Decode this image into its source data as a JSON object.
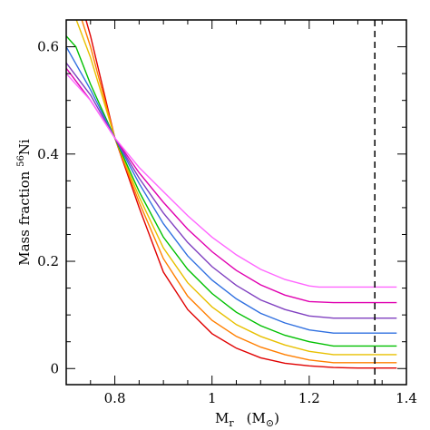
{
  "chart_data": {
    "type": "line",
    "xlabel": {
      "main": "M",
      "sub": "r",
      "unit_open": "(M",
      "unit_sym": "⊙",
      "unit_close": ")"
    },
    "ylabel": {
      "main": "Mass fraction ",
      "sup": "56",
      "tail": "Ni"
    },
    "xlim": [
      0.7,
      1.4
    ],
    "ylim": [
      -0.03,
      0.65
    ],
    "x_ticks": [
      "0.8",
      "1",
      "1.2",
      "1.4"
    ],
    "y_ticks": [
      "0",
      "0.2",
      "0.4",
      "0.6"
    ],
    "x_tick_values": [
      0.8,
      1.0,
      1.2,
      1.4
    ],
    "y_tick_values": [
      0,
      0.2,
      0.4,
      0.6
    ],
    "vline": {
      "x": 1.335,
      "style": "dashed",
      "color": "#000000"
    },
    "series": [
      {
        "color": "#e00000",
        "points": [
          [
            0.7,
            0.78
          ],
          [
            0.75,
            0.62
          ],
          [
            0.8,
            0.43
          ],
          [
            0.85,
            0.3
          ],
          [
            0.9,
            0.18
          ],
          [
            0.95,
            0.11
          ],
          [
            1.0,
            0.065
          ],
          [
            1.05,
            0.038
          ],
          [
            1.1,
            0.02
          ],
          [
            1.15,
            0.01
          ],
          [
            1.2,
            0.005
          ],
          [
            1.25,
            0.002
          ],
          [
            1.3,
            0.001
          ],
          [
            1.38,
            0.001
          ]
        ]
      },
      {
        "color": "#ff7f00",
        "points": [
          [
            0.7,
            0.74
          ],
          [
            0.75,
            0.6
          ],
          [
            0.8,
            0.43
          ],
          [
            0.85,
            0.31
          ],
          [
            0.9,
            0.205
          ],
          [
            0.95,
            0.135
          ],
          [
            1.0,
            0.09
          ],
          [
            1.05,
            0.06
          ],
          [
            1.1,
            0.04
          ],
          [
            1.15,
            0.026
          ],
          [
            1.2,
            0.016
          ],
          [
            1.25,
            0.011
          ],
          [
            1.3,
            0.011
          ],
          [
            1.38,
            0.011
          ]
        ]
      },
      {
        "color": "#e8c000",
        "points": [
          [
            0.7,
            0.7
          ],
          [
            0.75,
            0.58
          ],
          [
            0.8,
            0.43
          ],
          [
            0.85,
            0.32
          ],
          [
            0.9,
            0.225
          ],
          [
            0.95,
            0.16
          ],
          [
            1.0,
            0.115
          ],
          [
            1.05,
            0.082
          ],
          [
            1.1,
            0.06
          ],
          [
            1.15,
            0.044
          ],
          [
            1.2,
            0.032
          ],
          [
            1.25,
            0.026
          ],
          [
            1.3,
            0.026
          ],
          [
            1.38,
            0.026
          ]
        ]
      },
      {
        "color": "#00c000",
        "points": [
          [
            0.7,
            0.62
          ],
          [
            0.72,
            0.6
          ],
          [
            0.75,
            0.53
          ],
          [
            0.8,
            0.43
          ],
          [
            0.85,
            0.33
          ],
          [
            0.9,
            0.245
          ],
          [
            0.95,
            0.185
          ],
          [
            1.0,
            0.14
          ],
          [
            1.05,
            0.105
          ],
          [
            1.1,
            0.08
          ],
          [
            1.15,
            0.062
          ],
          [
            1.2,
            0.05
          ],
          [
            1.25,
            0.042
          ],
          [
            1.3,
            0.042
          ],
          [
            1.38,
            0.042
          ]
        ]
      },
      {
        "color": "#3070e0",
        "points": [
          [
            0.7,
            0.6
          ],
          [
            0.75,
            0.52
          ],
          [
            0.8,
            0.43
          ],
          [
            0.85,
            0.345
          ],
          [
            0.9,
            0.27
          ],
          [
            0.95,
            0.21
          ],
          [
            1.0,
            0.165
          ],
          [
            1.05,
            0.13
          ],
          [
            1.1,
            0.103
          ],
          [
            1.15,
            0.085
          ],
          [
            1.2,
            0.072
          ],
          [
            1.25,
            0.066
          ],
          [
            1.3,
            0.066
          ],
          [
            1.38,
            0.066
          ]
        ]
      },
      {
        "color": "#8040c0",
        "points": [
          [
            0.7,
            0.57
          ],
          [
            0.75,
            0.51
          ],
          [
            0.8,
            0.43
          ],
          [
            0.85,
            0.355
          ],
          [
            0.9,
            0.29
          ],
          [
            0.95,
            0.235
          ],
          [
            1.0,
            0.19
          ],
          [
            1.05,
            0.155
          ],
          [
            1.1,
            0.128
          ],
          [
            1.15,
            0.11
          ],
          [
            1.2,
            0.098
          ],
          [
            1.25,
            0.094
          ],
          [
            1.3,
            0.094
          ],
          [
            1.38,
            0.094
          ]
        ]
      },
      {
        "color": "#e000b0",
        "points": [
          [
            0.7,
            0.56
          ],
          [
            0.75,
            0.5
          ],
          [
            0.8,
            0.43
          ],
          [
            0.85,
            0.365
          ],
          [
            0.9,
            0.31
          ],
          [
            0.95,
            0.26
          ],
          [
            1.0,
            0.218
          ],
          [
            1.05,
            0.183
          ],
          [
            1.1,
            0.156
          ],
          [
            1.15,
            0.137
          ],
          [
            1.2,
            0.125
          ],
          [
            1.25,
            0.123
          ],
          [
            1.3,
            0.123
          ],
          [
            1.38,
            0.123
          ]
        ]
      },
      {
        "color": "#ff66ff",
        "points": [
          [
            0.7,
            0.55
          ],
          [
            0.75,
            0.5
          ],
          [
            0.8,
            0.43
          ],
          [
            0.85,
            0.375
          ],
          [
            0.9,
            0.33
          ],
          [
            0.95,
            0.285
          ],
          [
            1.0,
            0.245
          ],
          [
            1.05,
            0.212
          ],
          [
            1.1,
            0.185
          ],
          [
            1.15,
            0.166
          ],
          [
            1.2,
            0.154
          ],
          [
            1.22,
            0.152
          ],
          [
            1.3,
            0.152
          ],
          [
            1.38,
            0.152
          ]
        ]
      }
    ]
  }
}
